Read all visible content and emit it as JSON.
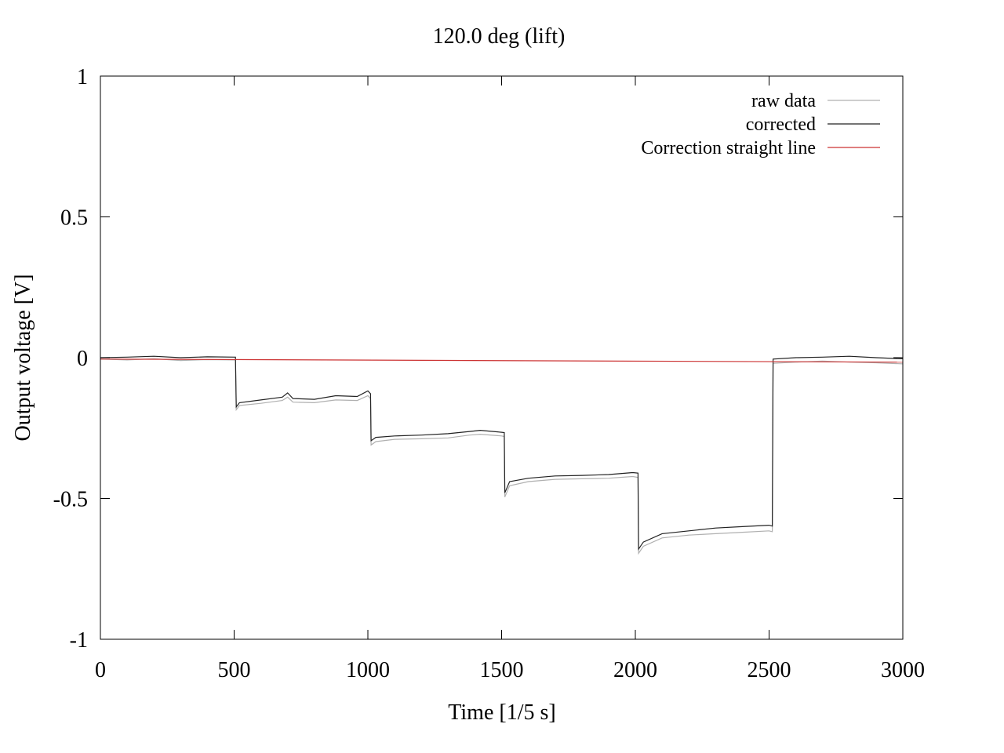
{
  "chart_data": {
    "type": "line",
    "title": "120.0 deg (lift)",
    "xlabel": "Time [1/5 s]",
    "ylabel": "Output voltage [V]",
    "xlim": [
      0,
      3000
    ],
    "ylim": [
      -1,
      1
    ],
    "x_ticks": [
      "0",
      "500",
      "1000",
      "1500",
      "2000",
      "2500",
      "3000"
    ],
    "y_ticks": [
      "1",
      "0.5",
      "0",
      "-0.5",
      "-1"
    ],
    "grid": false,
    "legend_position": "top-right",
    "series": [
      {
        "name": "raw data",
        "color": "#b0b0b0",
        "points": [
          [
            0,
            -0.005
          ],
          [
            100,
            -0.008
          ],
          [
            200,
            -0.004
          ],
          [
            300,
            -0.01
          ],
          [
            400,
            -0.007
          ],
          [
            505,
            -0.008
          ],
          [
            508,
            -0.185
          ],
          [
            520,
            -0.17
          ],
          [
            600,
            -0.162
          ],
          [
            680,
            -0.152
          ],
          [
            700,
            -0.14
          ],
          [
            720,
            -0.158
          ],
          [
            800,
            -0.16
          ],
          [
            880,
            -0.15
          ],
          [
            960,
            -0.152
          ],
          [
            1000,
            -0.135
          ],
          [
            1010,
            -0.145
          ],
          [
            1012,
            -0.31
          ],
          [
            1030,
            -0.298
          ],
          [
            1100,
            -0.29
          ],
          [
            1200,
            -0.288
          ],
          [
            1300,
            -0.285
          ],
          [
            1380,
            -0.275
          ],
          [
            1420,
            -0.272
          ],
          [
            1500,
            -0.278
          ],
          [
            1510,
            -0.28
          ],
          [
            1512,
            -0.495
          ],
          [
            1530,
            -0.455
          ],
          [
            1600,
            -0.44
          ],
          [
            1700,
            -0.432
          ],
          [
            1800,
            -0.43
          ],
          [
            1900,
            -0.428
          ],
          [
            1990,
            -0.422
          ],
          [
            2010,
            -0.425
          ],
          [
            2012,
            -0.695
          ],
          [
            2030,
            -0.67
          ],
          [
            2100,
            -0.64
          ],
          [
            2200,
            -0.63
          ],
          [
            2300,
            -0.625
          ],
          [
            2400,
            -0.62
          ],
          [
            2500,
            -0.615
          ],
          [
            2512,
            -0.618
          ],
          [
            2515,
            -0.02
          ],
          [
            2600,
            -0.016
          ],
          [
            2700,
            -0.012
          ],
          [
            2800,
            -0.016
          ],
          [
            2900,
            -0.018
          ],
          [
            3000,
            -0.022
          ]
        ]
      },
      {
        "name": "corrected",
        "color": "#222222",
        "points": [
          [
            0,
            0.0
          ],
          [
            100,
            0.002
          ],
          [
            200,
            0.005
          ],
          [
            300,
            0.0
          ],
          [
            400,
            0.003
          ],
          [
            505,
            0.002
          ],
          [
            508,
            -0.175
          ],
          [
            520,
            -0.16
          ],
          [
            600,
            -0.15
          ],
          [
            680,
            -0.14
          ],
          [
            700,
            -0.125
          ],
          [
            720,
            -0.145
          ],
          [
            800,
            -0.148
          ],
          [
            880,
            -0.135
          ],
          [
            960,
            -0.138
          ],
          [
            1000,
            -0.118
          ],
          [
            1010,
            -0.128
          ],
          [
            1012,
            -0.295
          ],
          [
            1030,
            -0.283
          ],
          [
            1100,
            -0.278
          ],
          [
            1200,
            -0.275
          ],
          [
            1300,
            -0.27
          ],
          [
            1380,
            -0.262
          ],
          [
            1420,
            -0.258
          ],
          [
            1500,
            -0.265
          ],
          [
            1510,
            -0.266
          ],
          [
            1512,
            -0.48
          ],
          [
            1530,
            -0.44
          ],
          [
            1600,
            -0.428
          ],
          [
            1700,
            -0.42
          ],
          [
            1800,
            -0.418
          ],
          [
            1900,
            -0.415
          ],
          [
            1990,
            -0.408
          ],
          [
            2010,
            -0.41
          ],
          [
            2012,
            -0.68
          ],
          [
            2030,
            -0.655
          ],
          [
            2100,
            -0.625
          ],
          [
            2200,
            -0.615
          ],
          [
            2300,
            -0.605
          ],
          [
            2400,
            -0.6
          ],
          [
            2500,
            -0.595
          ],
          [
            2512,
            -0.598
          ],
          [
            2515,
            -0.005
          ],
          [
            2600,
            0.0
          ],
          [
            2700,
            0.002
          ],
          [
            2800,
            0.005
          ],
          [
            2900,
            0.0
          ],
          [
            3000,
            -0.004
          ]
        ]
      },
      {
        "name": "Correction straight line",
        "color": "#cc3333",
        "points": [
          [
            0,
            -0.005
          ],
          [
            3000,
            -0.016
          ]
        ]
      }
    ]
  }
}
